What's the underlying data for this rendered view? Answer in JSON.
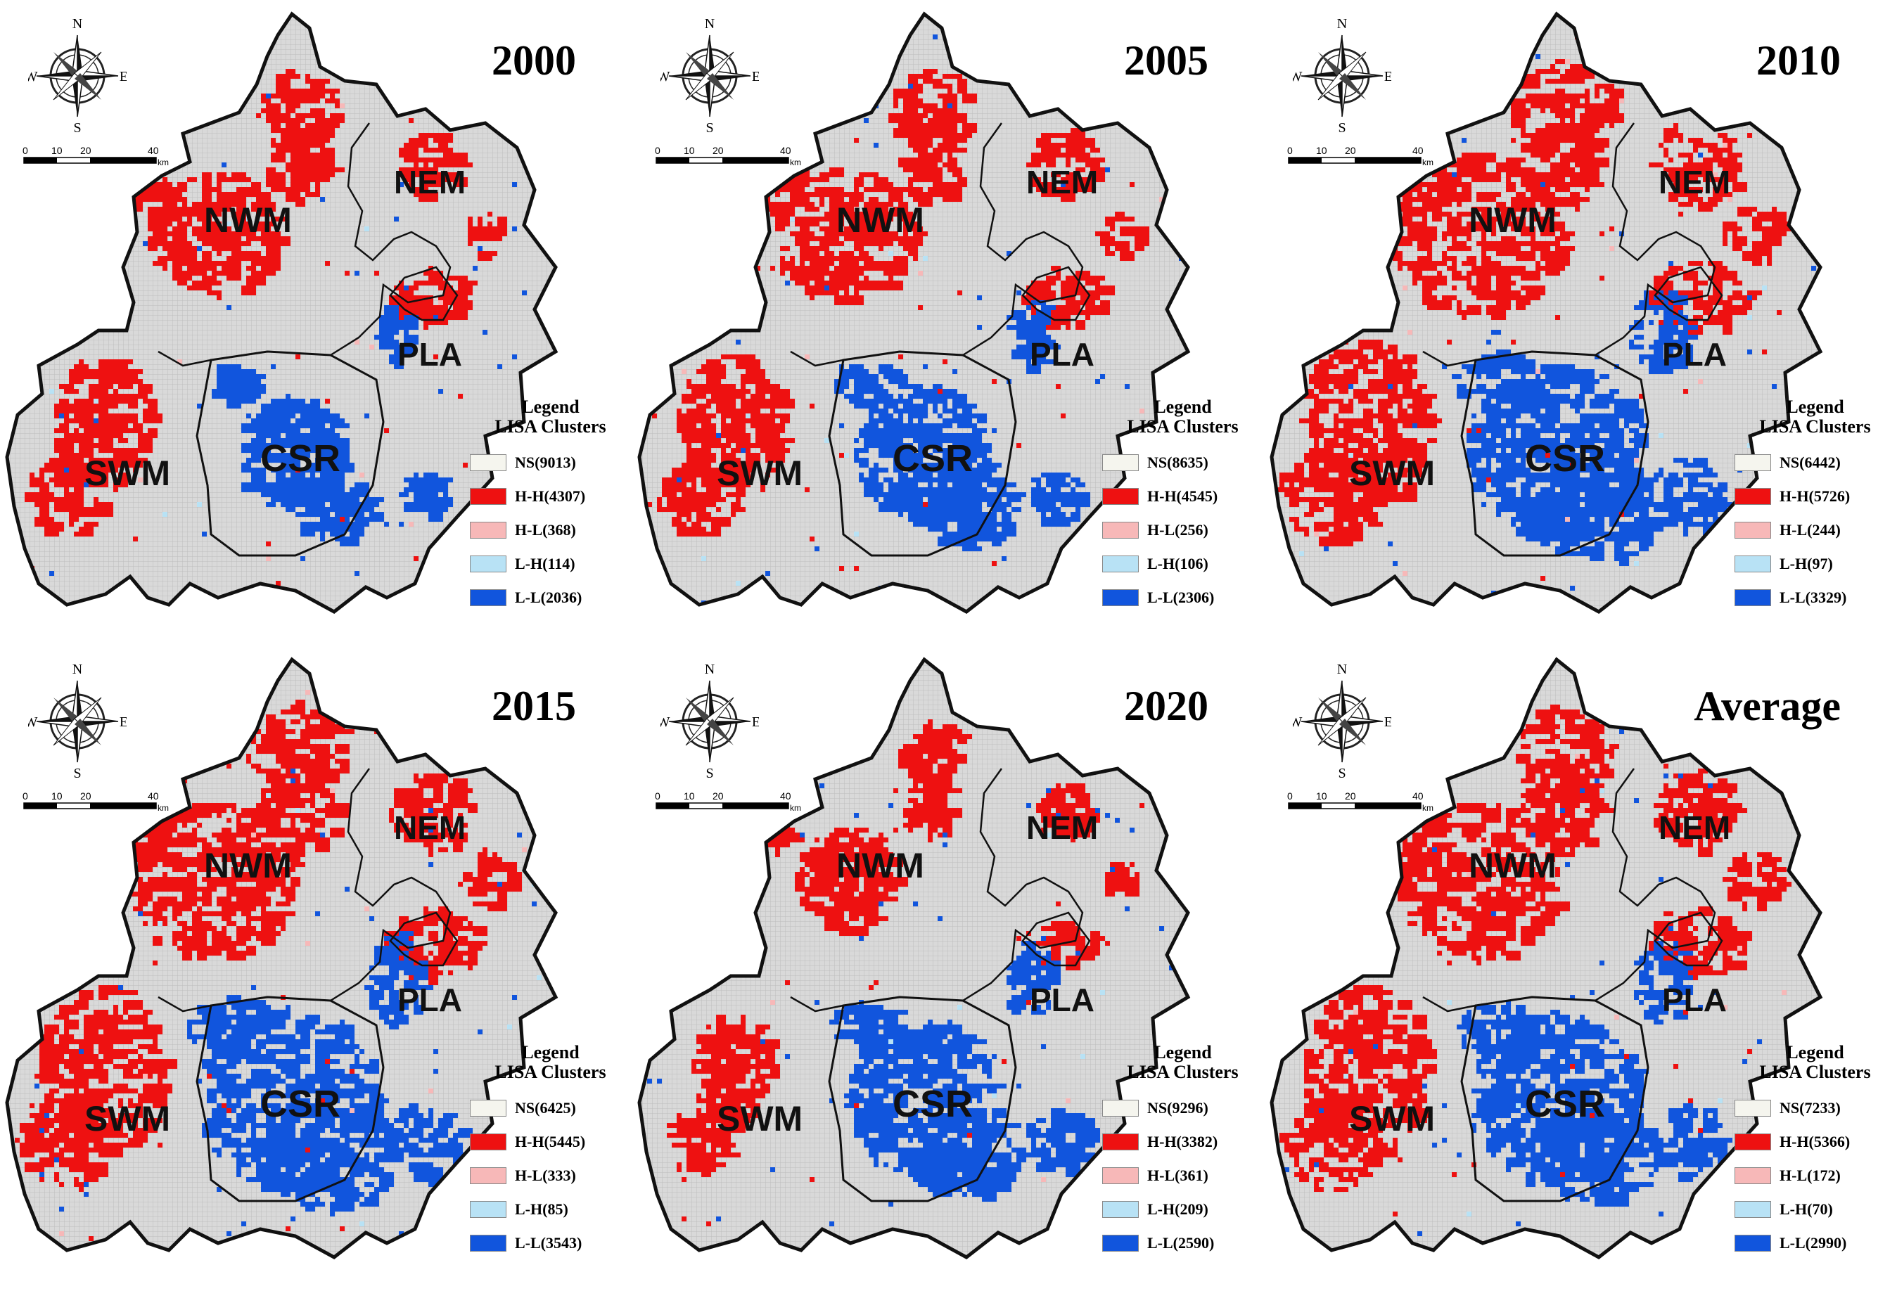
{
  "colors": {
    "NS": "#d9d9d9",
    "HH": "#ee1111",
    "HL": "#f7b8b8",
    "LH": "#b8e2f5",
    "LL": "#1155dd",
    "legend_NS": "#f5f5ee"
  },
  "compass": {
    "N": "N",
    "S": "S",
    "E": "E",
    "W": "W"
  },
  "scale": {
    "t0": "0",
    "t1": "10",
    "t2": "20",
    "t3": "40",
    "unit": "km"
  },
  "regions": {
    "nwm": "NWM",
    "nem": "NEM",
    "pla": "PLA",
    "swm": "SWM",
    "csr": "CSR"
  },
  "legend": {
    "title": "Legend",
    "subtitle": "LISA Clusters"
  },
  "panels": [
    {
      "title": "2000",
      "ns": "NS(9013)",
      "hh": "H-H(4307)",
      "hl": "H-L(368)",
      "lh": "L-H(114)",
      "ll": "L-L(2036)"
    },
    {
      "title": "2005",
      "ns": "NS(8635)",
      "hh": "H-H(4545)",
      "hl": "H-L(256)",
      "lh": "L-H(106)",
      "ll": "L-L(2306)"
    },
    {
      "title": "2010",
      "ns": "NS(6442)",
      "hh": "H-H(5726)",
      "hl": "H-L(244)",
      "lh": "L-H(97)",
      "ll": "L-L(3329)"
    },
    {
      "title": "2015",
      "ns": "NS(6425)",
      "hh": "H-H(5445)",
      "hl": "H-L(333)",
      "lh": "L-H(85)",
      "ll": "L-L(3543)"
    },
    {
      "title": "2020",
      "ns": "NS(9296)",
      "hh": "H-H(3382)",
      "hl": "H-L(361)",
      "lh": "L-H(209)",
      "ll": "L-L(2590)"
    },
    {
      "title": "Average",
      "ns": "NS(7233)",
      "hh": "H-H(5366)",
      "hl": "H-L(172)",
      "lh": "L-H(70)",
      "ll": "L-L(2990)"
    }
  ]
}
